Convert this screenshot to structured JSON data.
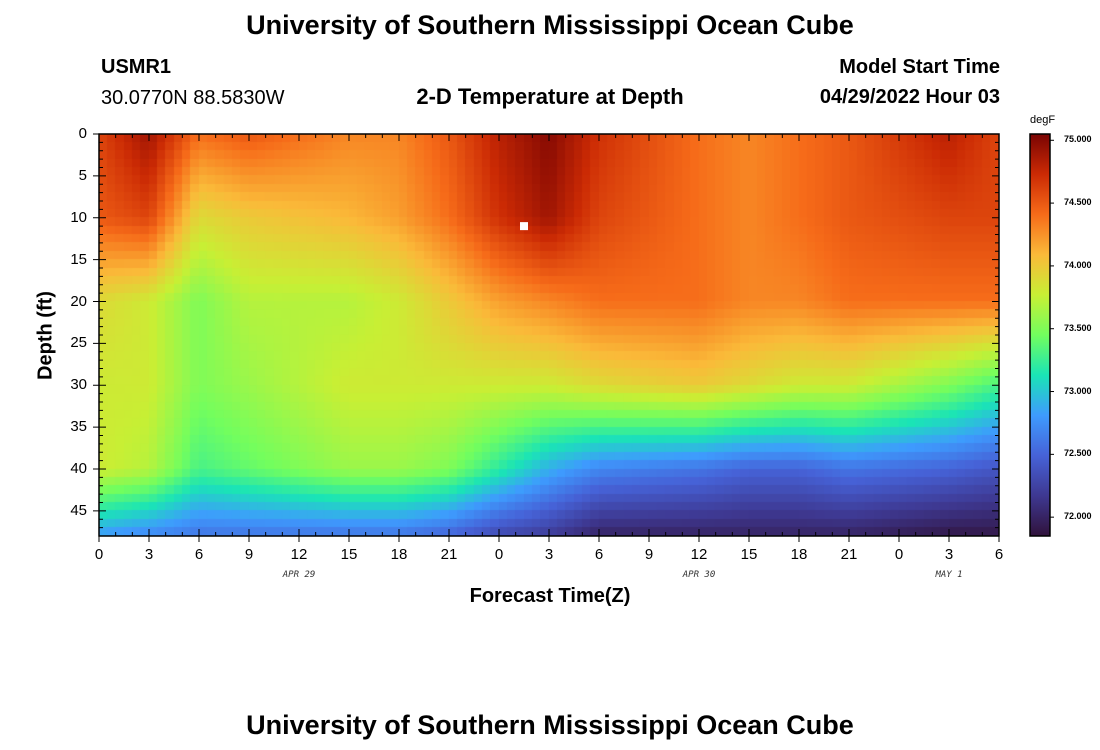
{
  "header": {
    "title": "University of Southern Mississippi Ocean Cube",
    "station": "USMR1",
    "coords": "30.0770N  88.5830W",
    "subtitle": "2-D Temperature at Depth",
    "model_start_label": "Model Start Time",
    "model_start_value": "04/29/2022 Hour 03"
  },
  "footer": {
    "title": "University of Southern Mississippi Ocean Cube"
  },
  "chart_data": {
    "type": "heatmap",
    "title": "2-D Temperature at Depth",
    "xlabel": "Forecast Time(Z)",
    "ylabel": "Depth (ft)",
    "x_ticks": [
      "0",
      "3",
      "6",
      "9",
      "12",
      "15",
      "18",
      "21",
      "0",
      "3",
      "6",
      "9",
      "12",
      "15",
      "18",
      "21",
      "0",
      "3",
      "6"
    ],
    "x_range_hours": [
      0,
      54
    ],
    "date_labels": [
      {
        "text": "APR 29",
        "hour": 12
      },
      {
        "text": "APR 30",
        "hour": 36
      },
      {
        "text": "MAY 1",
        "hour": 51
      }
    ],
    "y_ticks": [
      0,
      5,
      10,
      15,
      20,
      25,
      30,
      35,
      40,
      45
    ],
    "y_range_ft": [
      0,
      48
    ],
    "colorbar": {
      "unit": "degF",
      "min": 71.85,
      "max": 75.05,
      "ticks": [
        "72.000",
        "72.500",
        "73.000",
        "73.500",
        "74.000",
        "74.500",
        "75.000"
      ],
      "colors": [
        "#30123b",
        "#3e3891",
        "#4662d7",
        "#3e9bfe",
        "#1ae4b6",
        "#72fe5e",
        "#c8ef34",
        "#faba39",
        "#f66b19",
        "#cb2a04",
        "#7a0403"
      ]
    },
    "depth_levels_ft": [
      0,
      10,
      20,
      30,
      40,
      48
    ],
    "key_times_hours": [
      0,
      3,
      6,
      9,
      15,
      18,
      21,
      24,
      27,
      30,
      36,
      39,
      42,
      45,
      51,
      54
    ],
    "temperatures_degF": [
      [
        74.6,
        74.9,
        74.4,
        74.5,
        74.3,
        74.3,
        74.5,
        74.8,
        75.0,
        74.7,
        74.4,
        74.3,
        74.4,
        74.5,
        74.8,
        74.6
      ],
      [
        74.5,
        74.6,
        73.9,
        74.0,
        74.1,
        74.2,
        74.4,
        74.7,
        74.9,
        74.6,
        74.4,
        74.3,
        74.4,
        74.5,
        74.6,
        74.6
      ],
      [
        73.9,
        73.8,
        73.5,
        73.7,
        73.7,
        73.8,
        74.0,
        74.2,
        74.3,
        74.4,
        74.4,
        74.3,
        74.3,
        74.4,
        74.4,
        74.4
      ],
      [
        73.8,
        73.8,
        73.5,
        73.6,
        73.8,
        73.8,
        73.8,
        73.8,
        73.8,
        73.9,
        74.0,
        73.9,
        73.8,
        73.8,
        73.5,
        73.3
      ],
      [
        73.8,
        73.7,
        73.3,
        73.4,
        73.6,
        73.6,
        73.5,
        73.2,
        72.9,
        72.7,
        72.6,
        72.5,
        72.5,
        72.6,
        72.5,
        72.4
      ],
      [
        72.8,
        72.7,
        72.6,
        72.6,
        72.6,
        72.6,
        72.5,
        72.3,
        72.2,
        72.0,
        72.0,
        72.0,
        72.0,
        72.0,
        71.9,
        71.9
      ]
    ],
    "marker": {
      "hour": 25.5,
      "depth_ft": 11
    }
  }
}
